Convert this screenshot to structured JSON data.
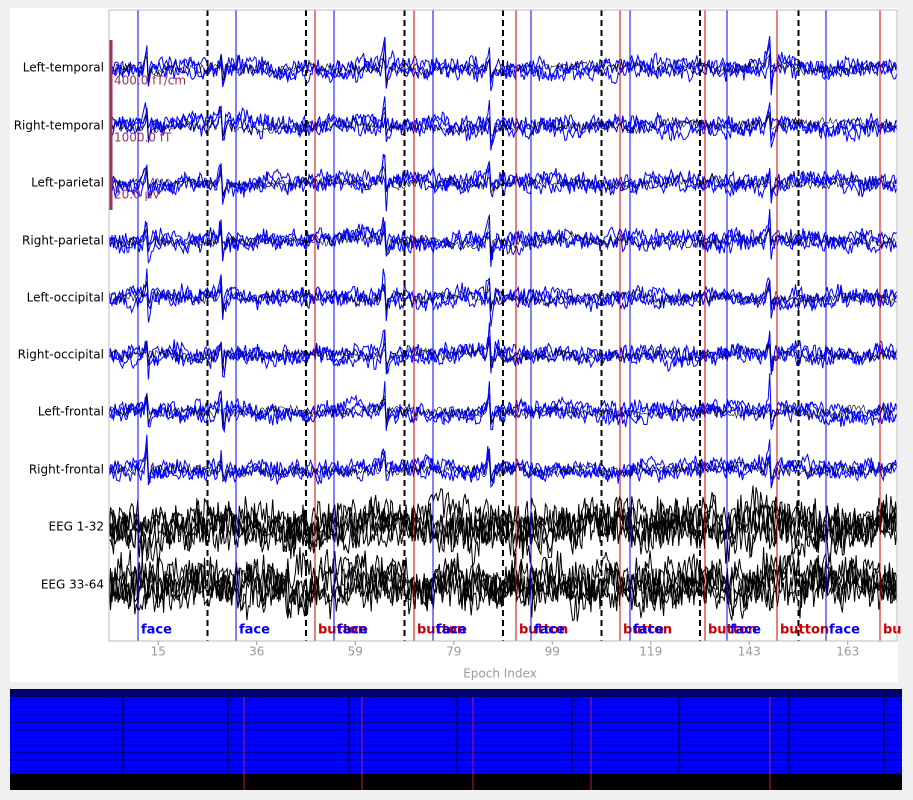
{
  "channels": [
    "Left-temporal",
    "Right-temporal",
    "Left-parietal",
    "Right-parietal",
    "Left-occipital",
    "Right-occipital",
    "Left-frontal",
    "Right-frontal",
    "EEG 1-32",
    "EEG 33-64"
  ],
  "scale_bars": [
    "400.0 fT/cm",
    "1000.0 fT",
    "20.0 µV"
  ],
  "events": [
    "face",
    "face",
    "button",
    "face",
    "button",
    "face",
    "button",
    "face",
    "button",
    "face",
    "button",
    "face",
    "button",
    "face",
    "bu"
  ],
  "x_axis": {
    "label": "Epoch Index",
    "ticks": [
      "15",
      "36",
      "59",
      "79",
      "99",
      "119",
      "143",
      "163"
    ]
  }
}
